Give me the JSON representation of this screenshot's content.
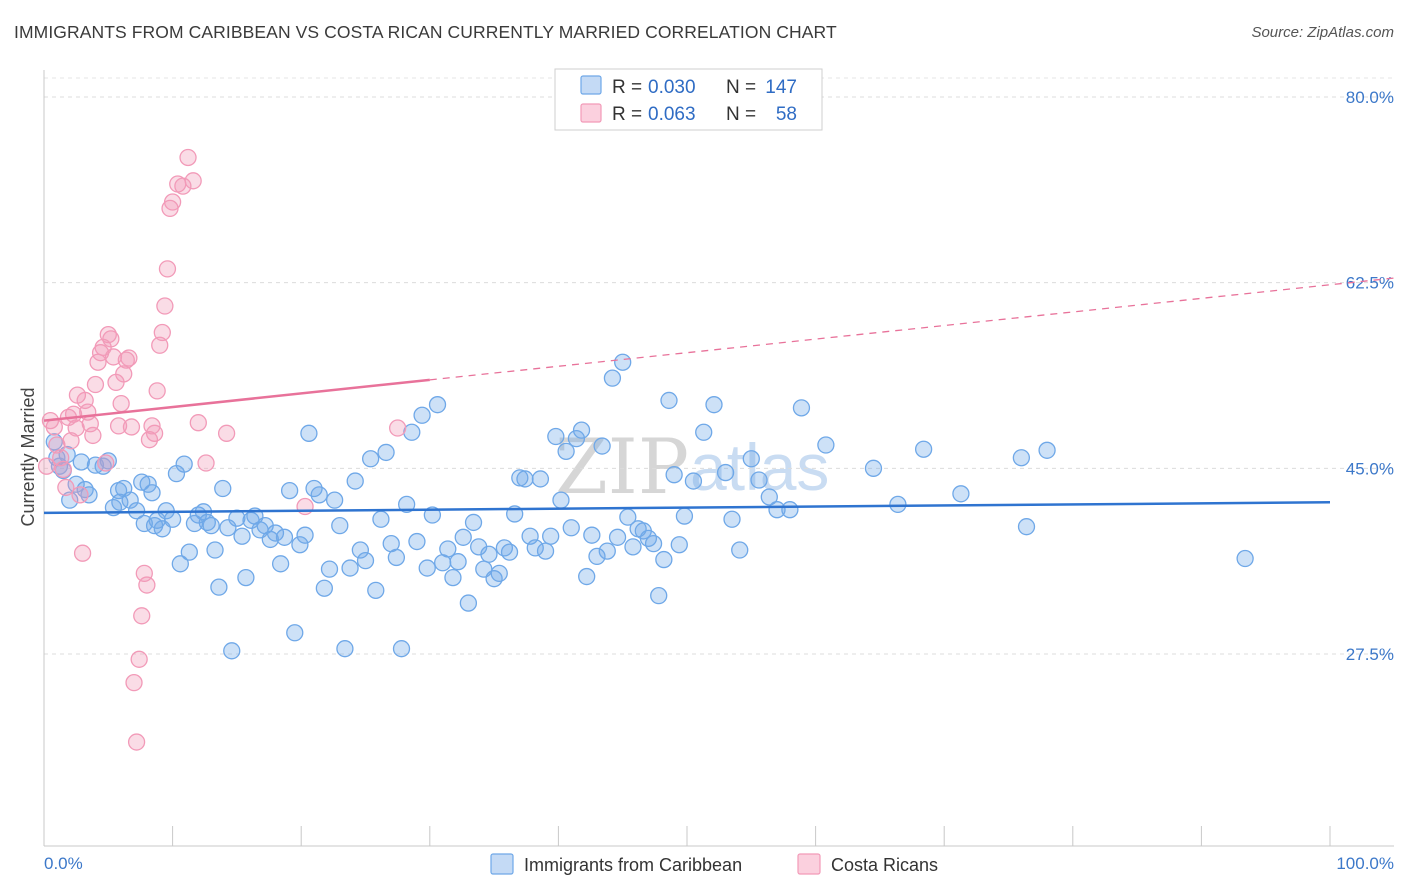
{
  "header": {
    "title": "IMMIGRANTS FROM CARIBBEAN VS COSTA RICAN CURRENTLY MARRIED CORRELATION CHART",
    "source": "Source: ZipAtlas.com"
  },
  "watermark": {
    "zip": "ZIP",
    "atlas": "atlas"
  },
  "legend_box": {
    "rows": [
      {
        "r_label": "R =",
        "r_value": "0.030",
        "n_label": "N =",
        "n_value": "147"
      },
      {
        "r_label": "R =",
        "r_value": "0.063",
        "n_label": "N =",
        "n_value": "58"
      }
    ]
  },
  "colors": {
    "blue": "#6fa8e8",
    "blue_line": "#2f74d0",
    "pink": "#f29ab8",
    "pink_line": "#e8729a",
    "tick": "#3c78c9"
  },
  "chart_data": {
    "type": "scatter",
    "title": "IMMIGRANTS FROM CARIBBEAN VS COSTA RICAN CURRENTLY MARRIED CORRELATION CHART",
    "xlabel": "",
    "ylabel": "Currently Married",
    "xlim": [
      0,
      100
    ],
    "ylim": [
      10,
      85
    ],
    "x_tick_labels": [
      "0.0%",
      "100.0%"
    ],
    "y_ticks": [
      27.5,
      45.0,
      62.5,
      80.0
    ],
    "y_tick_labels": [
      "27.5%",
      "45.0%",
      "62.5%",
      "80.0%"
    ],
    "grid": true,
    "legend_position": "top-center",
    "series": [
      {
        "name": "Immigrants from Caribbean",
        "color": "#6fa8e8",
        "trend": {
          "x": [
            0,
            100
          ],
          "y": [
            40.8,
            41.8
          ],
          "solid_until": 100
        },
        "points": [
          [
            0.8,
            47.5
          ],
          [
            1.0,
            46.0
          ],
          [
            1.2,
            45.2
          ],
          [
            1.5,
            44.8
          ],
          [
            1.8,
            46.3
          ],
          [
            2.0,
            42.0
          ],
          [
            2.5,
            43.5
          ],
          [
            2.9,
            45.6
          ],
          [
            3.2,
            43.0
          ],
          [
            3.5,
            42.5
          ],
          [
            4.0,
            45.3
          ],
          [
            4.6,
            45.2
          ],
          [
            5.0,
            45.7
          ],
          [
            5.4,
            41.3
          ],
          [
            5.8,
            42.9
          ],
          [
            5.9,
            41.8
          ],
          [
            6.2,
            43.1
          ],
          [
            6.7,
            42.0
          ],
          [
            7.2,
            41.0
          ],
          [
            7.6,
            43.7
          ],
          [
            7.8,
            39.8
          ],
          [
            8.1,
            43.5
          ],
          [
            8.4,
            42.7
          ],
          [
            8.6,
            39.6
          ],
          [
            8.8,
            40.1
          ],
          [
            9.2,
            39.3
          ],
          [
            9.5,
            41.0
          ],
          [
            10.0,
            40.2
          ],
          [
            10.3,
            44.5
          ],
          [
            10.6,
            36.0
          ],
          [
            10.9,
            45.4
          ],
          [
            11.3,
            37.1
          ],
          [
            11.7,
            39.8
          ],
          [
            12.0,
            40.6
          ],
          [
            12.4,
            40.9
          ],
          [
            12.7,
            39.9
          ],
          [
            13.0,
            39.6
          ],
          [
            13.3,
            37.3
          ],
          [
            13.6,
            33.8
          ],
          [
            13.9,
            43.1
          ],
          [
            14.3,
            39.4
          ],
          [
            14.6,
            27.8
          ],
          [
            15.0,
            40.3
          ],
          [
            15.4,
            38.6
          ],
          [
            15.7,
            34.7
          ],
          [
            16.1,
            40.1
          ],
          [
            16.4,
            40.5
          ],
          [
            16.8,
            39.2
          ],
          [
            17.2,
            39.6
          ],
          [
            17.6,
            38.3
          ],
          [
            18.0,
            38.9
          ],
          [
            18.4,
            36.0
          ],
          [
            18.7,
            38.5
          ],
          [
            19.1,
            42.9
          ],
          [
            19.5,
            29.5
          ],
          [
            19.9,
            37.8
          ],
          [
            20.3,
            38.7
          ],
          [
            20.6,
            48.3
          ],
          [
            21.0,
            43.1
          ],
          [
            21.4,
            42.5
          ],
          [
            21.8,
            33.7
          ],
          [
            22.2,
            35.5
          ],
          [
            22.6,
            42.0
          ],
          [
            23.0,
            39.6
          ],
          [
            23.4,
            28.0
          ],
          [
            23.8,
            35.6
          ],
          [
            24.2,
            43.8
          ],
          [
            24.6,
            37.3
          ],
          [
            25.0,
            36.3
          ],
          [
            25.4,
            45.9
          ],
          [
            25.8,
            33.5
          ],
          [
            26.2,
            40.2
          ],
          [
            26.6,
            46.5
          ],
          [
            27.0,
            37.9
          ],
          [
            27.4,
            36.6
          ],
          [
            27.8,
            28.0
          ],
          [
            28.2,
            41.6
          ],
          [
            28.6,
            48.4
          ],
          [
            29.0,
            38.1
          ],
          [
            29.4,
            50.0
          ],
          [
            29.8,
            35.6
          ],
          [
            30.2,
            40.6
          ],
          [
            30.6,
            51.0
          ],
          [
            31.0,
            36.1
          ],
          [
            31.4,
            37.4
          ],
          [
            31.8,
            34.7
          ],
          [
            32.2,
            36.2
          ],
          [
            32.6,
            38.5
          ],
          [
            33.0,
            32.3
          ],
          [
            33.4,
            39.9
          ],
          [
            33.8,
            37.6
          ],
          [
            34.2,
            35.5
          ],
          [
            34.6,
            36.9
          ],
          [
            35.0,
            34.6
          ],
          [
            35.4,
            35.1
          ],
          [
            35.8,
            37.5
          ],
          [
            36.2,
            37.1
          ],
          [
            36.6,
            40.7
          ],
          [
            37.0,
            44.1
          ],
          [
            37.4,
            44.0
          ],
          [
            37.8,
            38.6
          ],
          [
            38.2,
            37.5
          ],
          [
            38.6,
            44.0
          ],
          [
            39.0,
            37.2
          ],
          [
            39.4,
            38.6
          ],
          [
            39.8,
            48.0
          ],
          [
            40.2,
            42.0
          ],
          [
            40.6,
            46.6
          ],
          [
            41.0,
            39.4
          ],
          [
            41.4,
            47.8
          ],
          [
            41.8,
            48.6
          ],
          [
            42.2,
            34.8
          ],
          [
            42.6,
            38.7
          ],
          [
            43.0,
            36.7
          ],
          [
            43.4,
            47.1
          ],
          [
            43.8,
            37.2
          ],
          [
            44.2,
            53.5
          ],
          [
            44.6,
            38.5
          ],
          [
            45.0,
            55.0
          ],
          [
            45.4,
            40.4
          ],
          [
            45.8,
            37.6
          ],
          [
            46.2,
            39.3
          ],
          [
            46.6,
            39.1
          ],
          [
            47.0,
            38.4
          ],
          [
            47.4,
            37.9
          ],
          [
            47.8,
            33.0
          ],
          [
            48.2,
            36.4
          ],
          [
            48.6,
            51.4
          ],
          [
            49.0,
            44.4
          ],
          [
            49.4,
            37.8
          ],
          [
            49.8,
            40.5
          ],
          [
            50.5,
            43.8
          ],
          [
            51.3,
            48.4
          ],
          [
            52.1,
            51.0
          ],
          [
            53.0,
            44.6
          ],
          [
            53.5,
            40.2
          ],
          [
            54.1,
            37.3
          ],
          [
            55.0,
            45.9
          ],
          [
            55.6,
            43.9
          ],
          [
            56.4,
            42.3
          ],
          [
            57.0,
            41.1
          ],
          [
            58.0,
            41.1
          ],
          [
            58.9,
            50.7
          ],
          [
            60.8,
            47.2
          ],
          [
            64.5,
            45.0
          ],
          [
            66.4,
            41.6
          ],
          [
            68.4,
            46.8
          ],
          [
            71.3,
            42.6
          ],
          [
            76.0,
            46.0
          ],
          [
            76.4,
            39.5
          ],
          [
            78.0,
            46.7
          ],
          [
            93.4,
            36.5
          ]
        ]
      },
      {
        "name": "Costa Ricans",
        "color": "#f29ab8",
        "trend": {
          "x": [
            0,
            100
          ],
          "y": [
            49.5,
            62.3
          ],
          "solid_until": 30
        },
        "points": [
          [
            0.2,
            45.2
          ],
          [
            0.5,
            49.5
          ],
          [
            0.8,
            48.9
          ],
          [
            1.0,
            47.2
          ],
          [
            1.3,
            46.0
          ],
          [
            1.5,
            44.9
          ],
          [
            1.7,
            43.2
          ],
          [
            1.9,
            49.8
          ],
          [
            2.1,
            47.6
          ],
          [
            2.3,
            50.1
          ],
          [
            2.5,
            48.8
          ],
          [
            2.6,
            51.9
          ],
          [
            2.8,
            42.5
          ],
          [
            3.0,
            37.0
          ],
          [
            3.2,
            51.4
          ],
          [
            3.4,
            50.3
          ],
          [
            3.6,
            49.2
          ],
          [
            3.8,
            48.1
          ],
          [
            4.0,
            52.9
          ],
          [
            4.2,
            55.0
          ],
          [
            4.4,
            55.9
          ],
          [
            4.6,
            56.4
          ],
          [
            4.8,
            45.5
          ],
          [
            5.0,
            57.6
          ],
          [
            5.2,
            57.2
          ],
          [
            5.4,
            55.5
          ],
          [
            5.6,
            53.1
          ],
          [
            5.8,
            49.0
          ],
          [
            6.0,
            51.1
          ],
          [
            6.2,
            53.9
          ],
          [
            6.4,
            55.2
          ],
          [
            6.6,
            55.4
          ],
          [
            6.8,
            48.9
          ],
          [
            7.0,
            24.8
          ],
          [
            7.2,
            19.2
          ],
          [
            7.4,
            27.0
          ],
          [
            7.6,
            31.1
          ],
          [
            7.8,
            35.1
          ],
          [
            8.0,
            34.0
          ],
          [
            8.2,
            47.7
          ],
          [
            8.4,
            49.0
          ],
          [
            8.6,
            48.3
          ],
          [
            8.8,
            52.3
          ],
          [
            9.0,
            56.6
          ],
          [
            9.2,
            57.8
          ],
          [
            9.4,
            60.3
          ],
          [
            9.6,
            63.8
          ],
          [
            9.8,
            69.5
          ],
          [
            10.0,
            70.1
          ],
          [
            10.4,
            71.8
          ],
          [
            10.8,
            71.6
          ],
          [
            11.2,
            74.3
          ],
          [
            11.6,
            72.1
          ],
          [
            12.0,
            49.3
          ],
          [
            12.6,
            45.5
          ],
          [
            14.2,
            48.3
          ],
          [
            20.3,
            41.4
          ],
          [
            27.5,
            48.8
          ]
        ]
      }
    ]
  },
  "bottom_legend": {
    "items": [
      "Immigrants from Caribbean",
      "Costa Ricans"
    ]
  }
}
